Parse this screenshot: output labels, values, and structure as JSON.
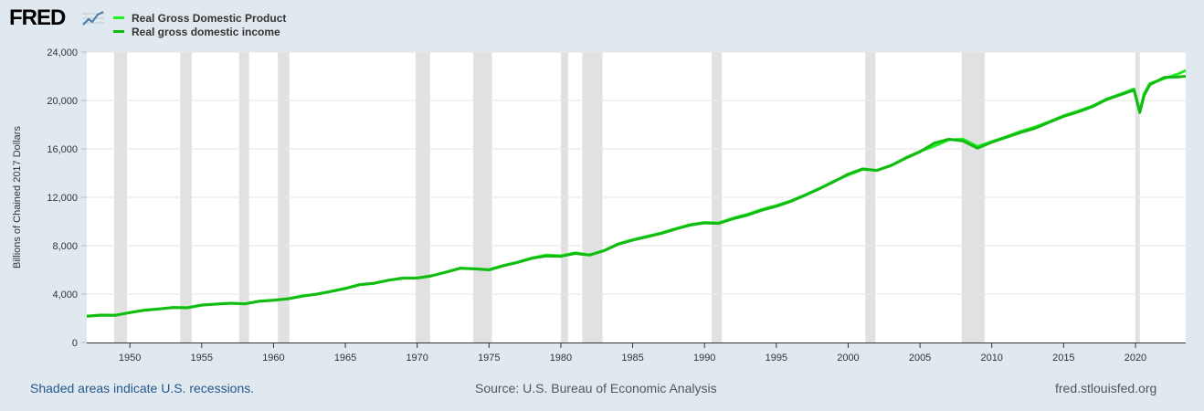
{
  "brand": {
    "name": "FRED",
    "icon": "trend-chart-icon"
  },
  "legend": [
    {
      "label": "Real Gross Domestic Product",
      "color": "#22ee22"
    },
    {
      "label": "Real gross domestic income",
      "color": "#11bb11"
    }
  ],
  "footer": {
    "recession_note": "Shaded areas indicate U.S. recessions.",
    "source": "Source: U.S. Bureau of Economic Analysis",
    "site": "fred.stlouisfed.org"
  },
  "chart_data": {
    "type": "line",
    "title": "",
    "xlabel": "",
    "ylabel": "Billions of Chained 2017 Dollars",
    "xlim": [
      1947,
      2023.5
    ],
    "ylim": [
      0,
      24000
    ],
    "x_ticks": [
      1950,
      1955,
      1960,
      1965,
      1970,
      1975,
      1980,
      1985,
      1990,
      1995,
      2000,
      2005,
      2010,
      2015,
      2020
    ],
    "x_tick_labels": [
      "1950",
      "1955",
      "1960",
      "1965",
      "1970",
      "1975",
      "1980",
      "1985",
      "1990",
      "1995",
      "2000",
      "2005",
      "2010",
      "2015",
      "2020"
    ],
    "y_ticks": [
      0,
      4000,
      8000,
      12000,
      16000,
      20000,
      24000
    ],
    "y_tick_labels": [
      "0",
      "4,000",
      "8,000",
      "12,000",
      "16,000",
      "20,000",
      "24,000"
    ],
    "grid": true,
    "recessions": [
      [
        1948.9,
        1949.8
      ],
      [
        1953.5,
        1954.3
      ],
      [
        1957.6,
        1958.3
      ],
      [
        1960.3,
        1961.1
      ],
      [
        1969.9,
        1970.9
      ],
      [
        1973.9,
        1975.2
      ],
      [
        1980.0,
        1980.5
      ],
      [
        1981.5,
        1982.9
      ],
      [
        1990.5,
        1991.2
      ],
      [
        2001.2,
        2001.9
      ],
      [
        2007.9,
        2009.5
      ],
      [
        2020.0,
        2020.3
      ]
    ],
    "series": [
      {
        "name": "Real Gross Domestic Product",
        "color": "#22ee22",
        "x": [
          1947,
          1948,
          1949,
          1950,
          1951,
          1952,
          1953,
          1954,
          1955,
          1956,
          1957,
          1958,
          1959,
          1960,
          1961,
          1962,
          1963,
          1964,
          1965,
          1966,
          1967,
          1968,
          1969,
          1970,
          1971,
          1972,
          1973,
          1974,
          1975,
          1976,
          1977,
          1978,
          1979,
          1980,
          1981,
          1982,
          1983,
          1984,
          1985,
          1986,
          1987,
          1988,
          1989,
          1990,
          1991,
          1992,
          1993,
          1994,
          1995,
          1996,
          1997,
          1998,
          1999,
          2000,
          2001,
          2002,
          2003,
          2004,
          2005,
          2006,
          2007,
          2008,
          2009,
          2010,
          2011,
          2012,
          2013,
          2014,
          2015,
          2016,
          2017,
          2018,
          2019,
          2019.9,
          2020.3,
          2020.6,
          2021,
          2022,
          2023,
          2023.5
        ],
        "values": [
          2180,
          2270,
          2260,
          2480,
          2680,
          2780,
          2900,
          2880,
          3100,
          3180,
          3250,
          3200,
          3420,
          3500,
          3620,
          3850,
          4000,
          4230,
          4480,
          4790,
          4900,
          5150,
          5330,
          5340,
          5520,
          5820,
          6150,
          6090,
          6020,
          6360,
          6650,
          7000,
          7230,
          7170,
          7400,
          7240,
          7600,
          8150,
          8500,
          8780,
          9050,
          9410,
          9740,
          9920,
          9880,
          10280,
          10600,
          11000,
          11310,
          11700,
          12200,
          12730,
          13320,
          13840,
          14300,
          14230,
          14650,
          15260,
          15800,
          16230,
          16750,
          16800,
          16200,
          16600,
          17000,
          17440,
          17800,
          18240,
          18740,
          19120,
          19540,
          20120,
          20540,
          20950,
          19100,
          20550,
          21400,
          21800,
          22200,
          22480
        ]
      },
      {
        "name": "Real gross domestic income",
        "color": "#11bb11",
        "x": [
          1947,
          1948,
          1949,
          1950,
          1951,
          1952,
          1953,
          1954,
          1955,
          1956,
          1957,
          1958,
          1959,
          1960,
          1961,
          1962,
          1963,
          1964,
          1965,
          1966,
          1967,
          1968,
          1969,
          1970,
          1971,
          1972,
          1973,
          1974,
          1975,
          1976,
          1977,
          1978,
          1979,
          1980,
          1981,
          1982,
          1983,
          1984,
          1985,
          1986,
          1987,
          1988,
          1989,
          1990,
          1991,
          1992,
          1993,
          1994,
          1995,
          1996,
          1997,
          1998,
          1999,
          2000,
          2001,
          2002,
          2003,
          2004,
          2005,
          2006,
          2007,
          2008,
          2009,
          2010,
          2011,
          2012,
          2013,
          2014,
          2015,
          2016,
          2017,
          2018,
          2019,
          2019.9,
          2020.3,
          2020.6,
          2021,
          2022,
          2023,
          2023.5
        ],
        "values": [
          2170,
          2260,
          2250,
          2470,
          2660,
          2760,
          2890,
          2870,
          3090,
          3170,
          3240,
          3190,
          3400,
          3490,
          3600,
          3830,
          3990,
          4210,
          4460,
          4770,
          4890,
          5140,
          5310,
          5320,
          5500,
          5800,
          6130,
          6080,
          6000,
          6340,
          6620,
          6960,
          7150,
          7120,
          7360,
          7220,
          7580,
          8120,
          8460,
          8730,
          9010,
          9370,
          9700,
          9880,
          9840,
          10230,
          10530,
          10930,
          11250,
          11650,
          12160,
          12700,
          13280,
          13920,
          14350,
          14220,
          14620,
          15220,
          15760,
          16480,
          16800,
          16650,
          16050,
          16550,
          16950,
          17350,
          17700,
          18200,
          18680,
          19050,
          19480,
          20080,
          20480,
          20850,
          19000,
          20400,
          21300,
          21900,
          21950,
          22000
        ]
      }
    ]
  }
}
